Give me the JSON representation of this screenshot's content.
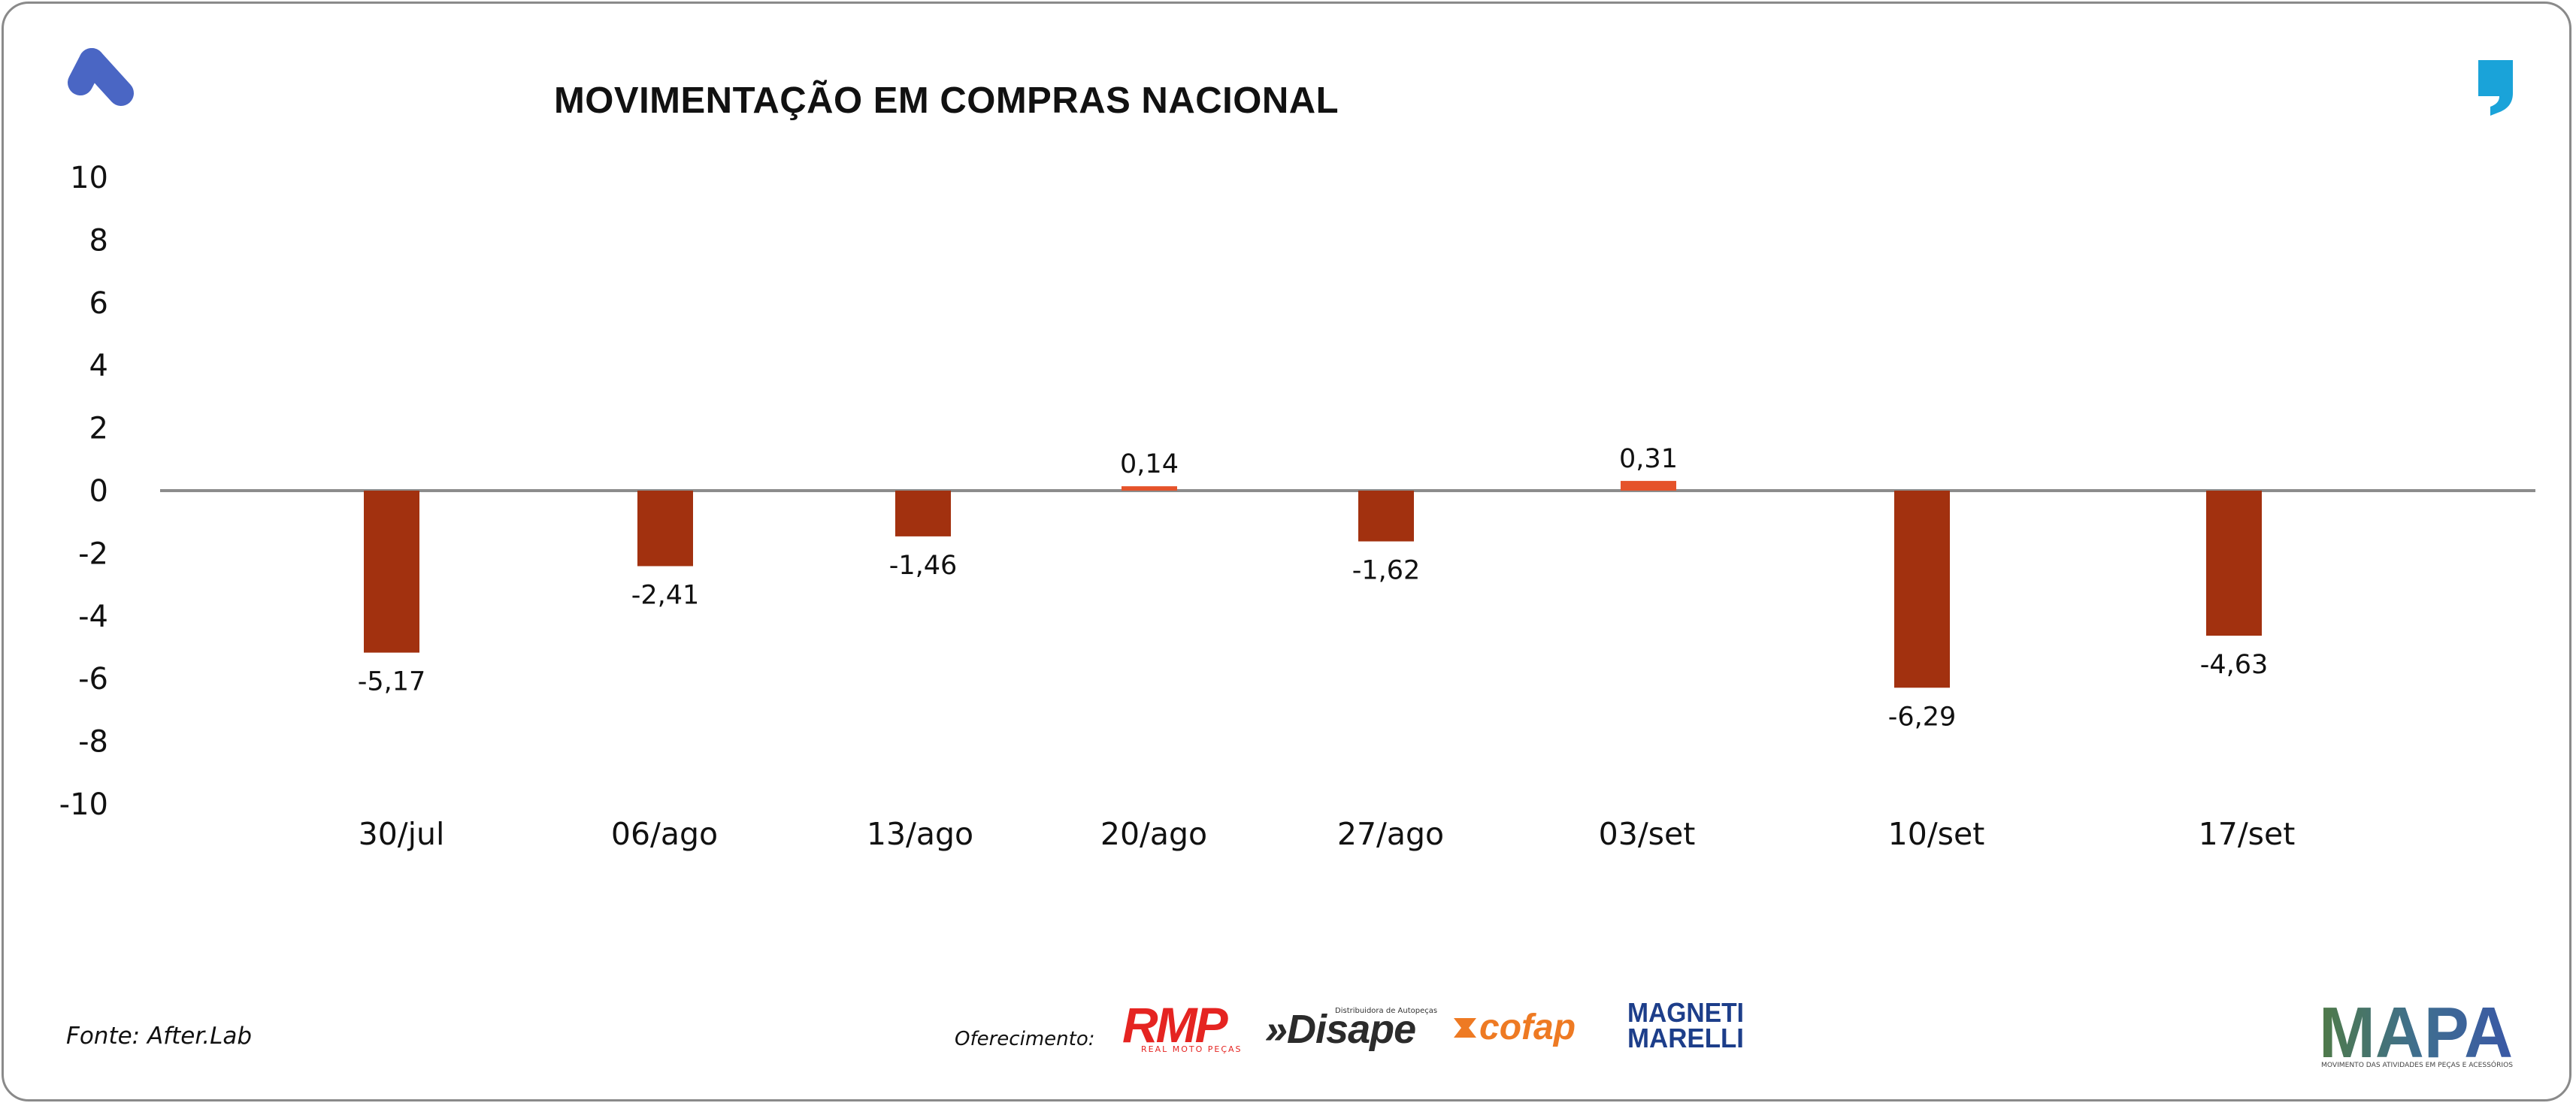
{
  "chart_data": {
    "type": "bar",
    "title": "MOVIMENTAÇÃO EM COMPRAS NACIONAL",
    "categories": [
      "30/jul",
      "06/ago",
      "13/ago",
      "20/ago",
      "27/ago",
      "03/set",
      "10/set",
      "17/set"
    ],
    "values": [
      -5.17,
      -2.41,
      -1.46,
      0.14,
      -1.62,
      0.31,
      -6.29,
      -4.63
    ],
    "value_labels": [
      "-5,17",
      "-2,41",
      "-1,46",
      "0,14",
      "-1,62",
      "0,31",
      "-6,29",
      "-4,63"
    ],
    "ylim": [
      -10,
      10
    ],
    "yticks": [
      10,
      8,
      6,
      4,
      2,
      0,
      -2,
      -4,
      -6,
      -8,
      -10
    ],
    "ytick_labels": [
      "10",
      "8",
      "6",
      "4",
      "2",
      "0",
      "-2",
      "-4",
      "-6",
      "-8",
      "-10"
    ],
    "grid": false,
    "legend": "none",
    "colors": {
      "negative": "#a2310f",
      "positive": "#e5532a",
      "zero_line": "#8c8c8c"
    }
  },
  "footer": {
    "source": "Fonte: After.Lab",
    "sponsor_label": "Oferecimento:",
    "sponsors": {
      "rmp": "RMP",
      "rmp_sub": "REAL MOTO PEÇAS",
      "disape": "»Disape",
      "disape_sub": "Distribuidora de Autopeças",
      "cofap": "cofap",
      "magneti_1": "MAGNETI",
      "magneti_2": "MARELLI"
    },
    "mapa": "MAPA",
    "mapa_sub": "MOVIMENTO DAS ATIVIDADES EM PEÇAS E ACESSÓRIOS"
  },
  "icons": {
    "brand_logo": "letter-a-logo-icon",
    "quote": "quote-mark-icon"
  },
  "brand_colors": {
    "logo_blue": "#4a66c4",
    "quote_cyan": "#1aa3d9"
  }
}
